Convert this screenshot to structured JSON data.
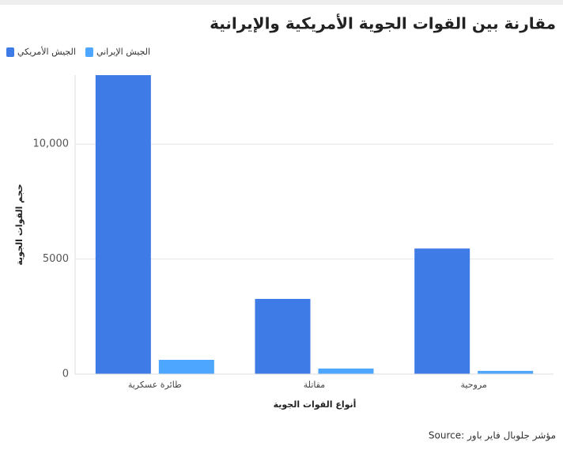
{
  "chart_data": {
    "type": "bar",
    "title": "مقارنة بين القوات الجوية الأمريكية والإيرانية",
    "x_label": "أنواع القوات الجوية",
    "y_label": "حجم القوات الجوية",
    "source": "Source: مؤشر جلوبال فاير باور",
    "categories": [
      "طائرة عسكرية",
      "مقاتلة",
      "مروحية"
    ],
    "series": [
      {
        "name": "الجيش الأمريكي",
        "color": "#3f7be6",
        "values": [
          13000,
          3270,
          5460
        ]
      },
      {
        "name": "الجيش الإيراني",
        "color": "#4da6ff",
        "values": [
          620,
          240,
          140
        ]
      }
    ],
    "ylim": [
      0,
      13000
    ],
    "yticks": [
      0,
      5000,
      {
        "value": 10000,
        "label": "10,000"
      }
    ],
    "grid": true,
    "legend": "top-left"
  }
}
